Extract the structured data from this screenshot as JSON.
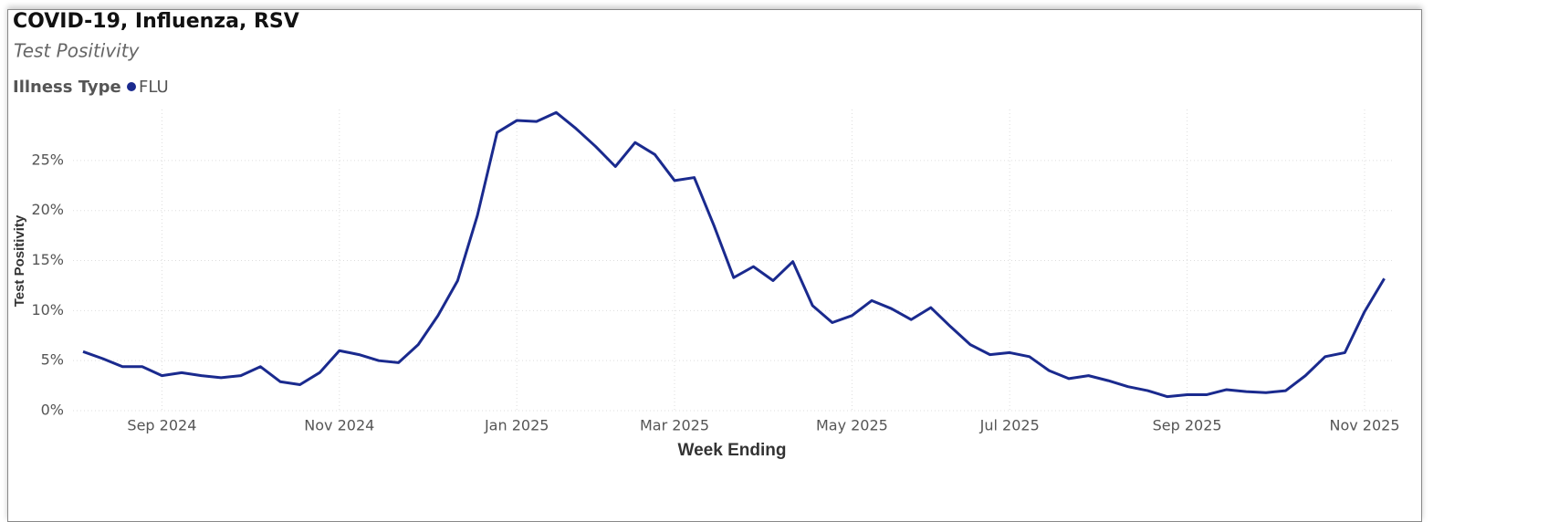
{
  "chart_data": {
    "type": "line",
    "title": "COVID-19, Influenza, RSV",
    "subtitle": "Test Positivity",
    "legend_title": "Illness Type",
    "x_label": "Week Ending",
    "y_label": "Test Positivity",
    "categories": [
      null,
      null,
      null,
      null,
      "Sep 2024",
      null,
      null,
      null,
      null,
      null,
      null,
      null,
      null,
      "Nov 2024",
      null,
      null,
      null,
      null,
      null,
      null,
      null,
      null,
      "Jan 2025",
      null,
      null,
      null,
      null,
      null,
      null,
      null,
      "Mar 2025",
      null,
      null,
      null,
      null,
      null,
      null,
      null,
      null,
      "May 2025",
      null,
      null,
      null,
      null,
      null,
      null,
      null,
      "Jul 2025",
      null,
      null,
      null,
      null,
      null,
      null,
      null,
      null,
      "Sep 2025",
      null,
      null,
      null,
      null,
      null,
      null,
      null,
      null,
      "Nov 2025",
      null
    ],
    "series": [
      {
        "name": "FLU",
        "color": "#1a2a8e",
        "values": [
          5.9,
          5.2,
          4.4,
          4.4,
          3.5,
          3.8,
          3.5,
          3.3,
          3.5,
          4.4,
          2.9,
          2.6,
          3.8,
          6.0,
          5.6,
          5.0,
          4.8,
          6.6,
          9.5,
          13.0,
          19.5,
          27.8,
          29.0,
          28.9,
          29.8,
          28.2,
          26.4,
          24.4,
          26.8,
          25.6,
          23.0,
          23.3,
          18.5,
          13.3,
          14.4,
          13.0,
          14.9,
          10.5,
          8.8,
          9.5,
          11.0,
          10.2,
          9.1,
          10.3,
          8.4,
          6.6,
          5.6,
          5.8,
          5.4,
          4.0,
          3.2,
          3.5,
          3.0,
          2.4,
          2.0,
          1.4,
          1.6,
          1.6,
          2.1,
          1.9,
          1.8,
          2.0,
          3.5,
          5.4,
          5.8,
          9.9,
          13.2
        ]
      }
    ],
    "ylim": [
      0,
      30.1
    ],
    "yticks": [
      {
        "value": 0,
        "label": "0%"
      },
      {
        "value": 5,
        "label": "5%"
      },
      {
        "value": 10,
        "label": "10%"
      },
      {
        "value": 15,
        "label": "15%"
      },
      {
        "value": 20,
        "label": "20%"
      },
      {
        "value": 25,
        "label": "25%"
      }
    ],
    "grid": true
  }
}
